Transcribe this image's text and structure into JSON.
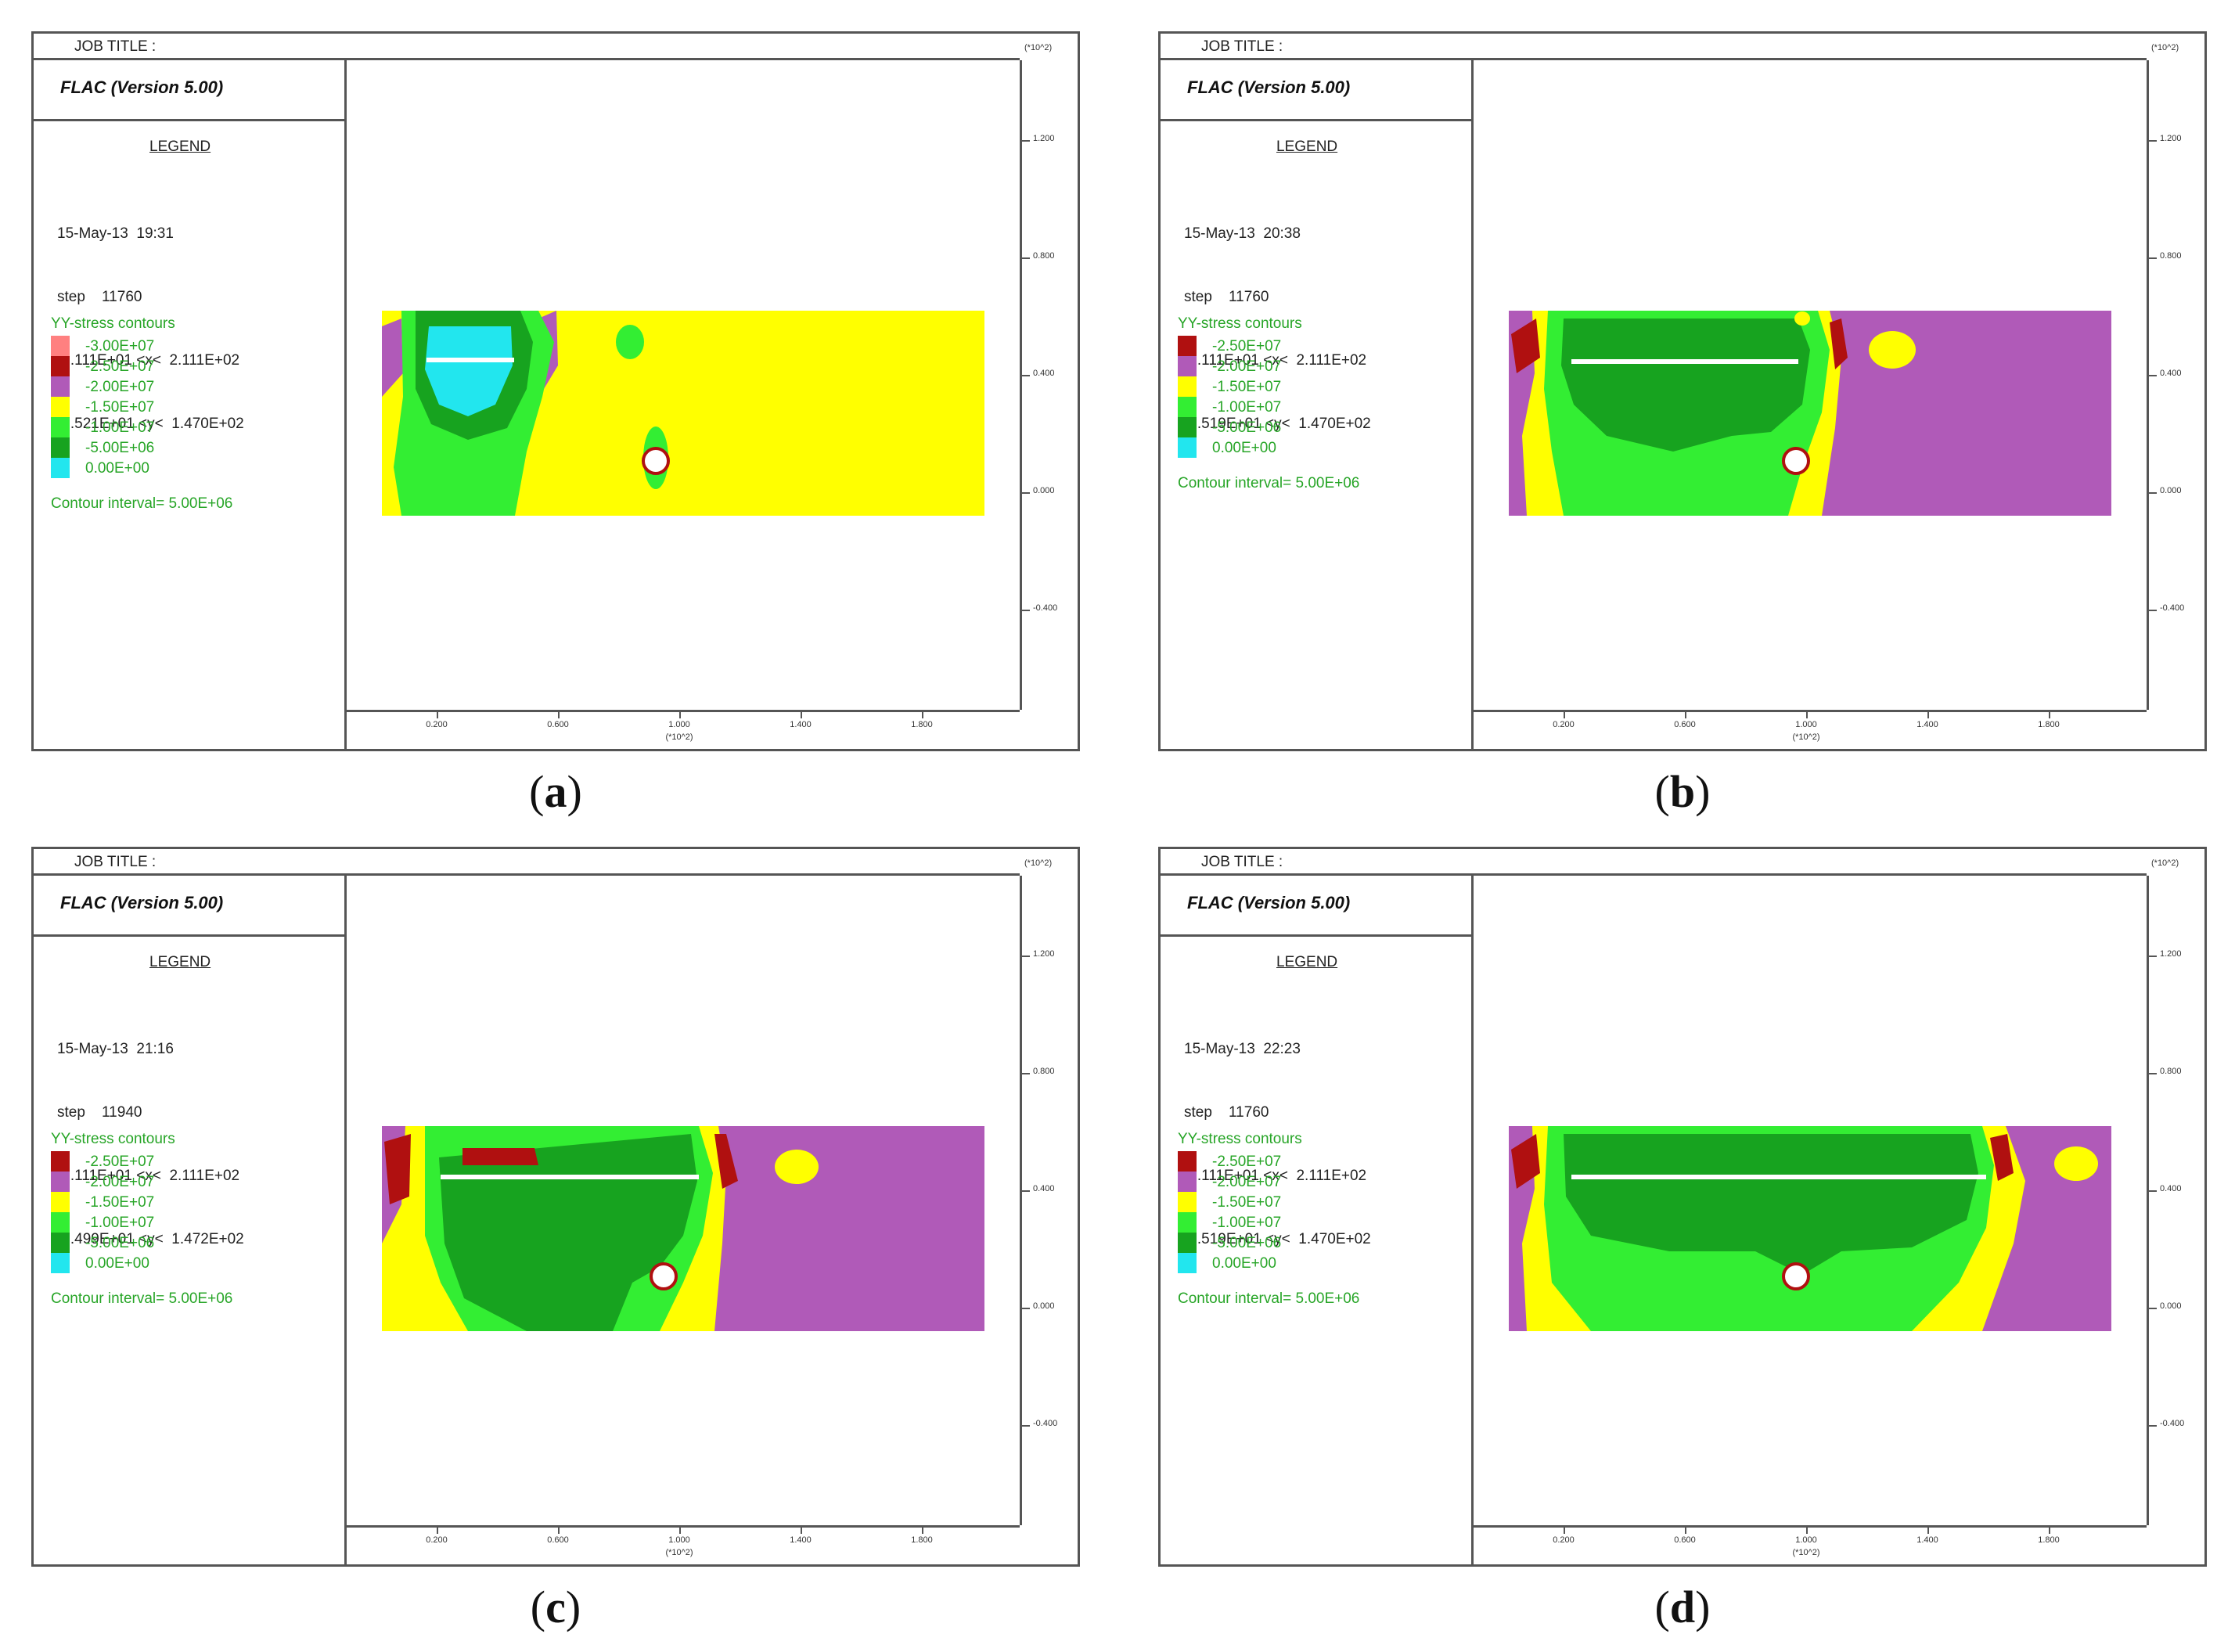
{
  "common": {
    "job_title": "JOB TITLE :",
    "flac_title": "FLAC (Version 5.00)",
    "legend_head": "LEGEND",
    "scale_note": "(*10^2)",
    "contour_title": "YY-stress contours",
    "interval": "Contour interval=  5.00E+06",
    "y_ticks": [
      "1.200",
      "0.800",
      "0.400",
      "0.000",
      "-0.400"
    ],
    "x_ticks": [
      "0.200",
      "0.600",
      "1.000",
      "1.400",
      "1.800"
    ],
    "x_scale": "(*10^2)"
  },
  "colors": {
    "dark_red": "#b01010",
    "light_red": "#ff8080",
    "magenta": "#b05ab8",
    "yellow": "#ffff00",
    "light_green": "#33ee33",
    "dark_green": "#17a31f",
    "cyan": "#22e6ee"
  },
  "panels": [
    {
      "id": "a",
      "caption": "a",
      "date_line": "15-May-13  19:31",
      "step_line": "step    11760",
      "x_range": "-1.111E+01 <x<  2.111E+02",
      "y_range": "-7.521E+01 <y<  1.470E+02",
      "contours": [
        {
          "label": "-3.00E+07",
          "color": "#ff8080"
        },
        {
          "label": "-2.50E+07",
          "color": "#b01010"
        },
        {
          "label": "-2.00E+07",
          "color": "#b05ab8"
        },
        {
          "label": "-1.50E+07",
          "color": "#ffff00"
        },
        {
          "label": "-1.00E+07",
          "color": "#33ee33"
        },
        {
          "label": "-5.00E+06",
          "color": "#17a31f"
        },
        {
          "label": "0.00E+00",
          "color": "#22e6ee"
        }
      ]
    },
    {
      "id": "b",
      "caption": "b",
      "date_line": "15-May-13  20:38",
      "step_line": "step    11760",
      "x_range": "-1.111E+01 <x<  2.111E+02",
      "y_range": "-7.519E+01 <y<  1.470E+02",
      "contours": [
        {
          "label": "-2.50E+07",
          "color": "#b01010"
        },
        {
          "label": "-2.00E+07",
          "color": "#b05ab8"
        },
        {
          "label": "-1.50E+07",
          "color": "#ffff00"
        },
        {
          "label": "-1.00E+07",
          "color": "#33ee33"
        },
        {
          "label": "-5.00E+06",
          "color": "#17a31f"
        },
        {
          "label": "0.00E+00",
          "color": "#22e6ee"
        }
      ]
    },
    {
      "id": "c",
      "caption": "c",
      "date_line": "15-May-13  21:16",
      "step_line": "step    11940",
      "x_range": "-1.111E+01 <x<  2.111E+02",
      "y_range": "-7.499E+01 <y<  1.472E+02",
      "contours": [
        {
          "label": "-2.50E+07",
          "color": "#b01010"
        },
        {
          "label": "-2.00E+07",
          "color": "#b05ab8"
        },
        {
          "label": "-1.50E+07",
          "color": "#ffff00"
        },
        {
          "label": "-1.00E+07",
          "color": "#33ee33"
        },
        {
          "label": "-5.00E+06",
          "color": "#17a31f"
        },
        {
          "label": "0.00E+00",
          "color": "#22e6ee"
        }
      ]
    },
    {
      "id": "d",
      "caption": "d",
      "date_line": "15-May-13  22:23",
      "step_line": "step    11760",
      "x_range": "-1.111E+01 <x<  2.111E+02",
      "y_range": "-7.519E+01 <y<  1.470E+02",
      "contours": [
        {
          "label": "-2.50E+07",
          "color": "#b01010"
        },
        {
          "label": "-2.00E+07",
          "color": "#b05ab8"
        },
        {
          "label": "-1.50E+07",
          "color": "#ffff00"
        },
        {
          "label": "-1.00E+07",
          "color": "#33ee33"
        },
        {
          "label": "-5.00E+06",
          "color": "#17a31f"
        },
        {
          "label": "0.00E+00",
          "color": "#22e6ee"
        }
      ]
    }
  ]
}
